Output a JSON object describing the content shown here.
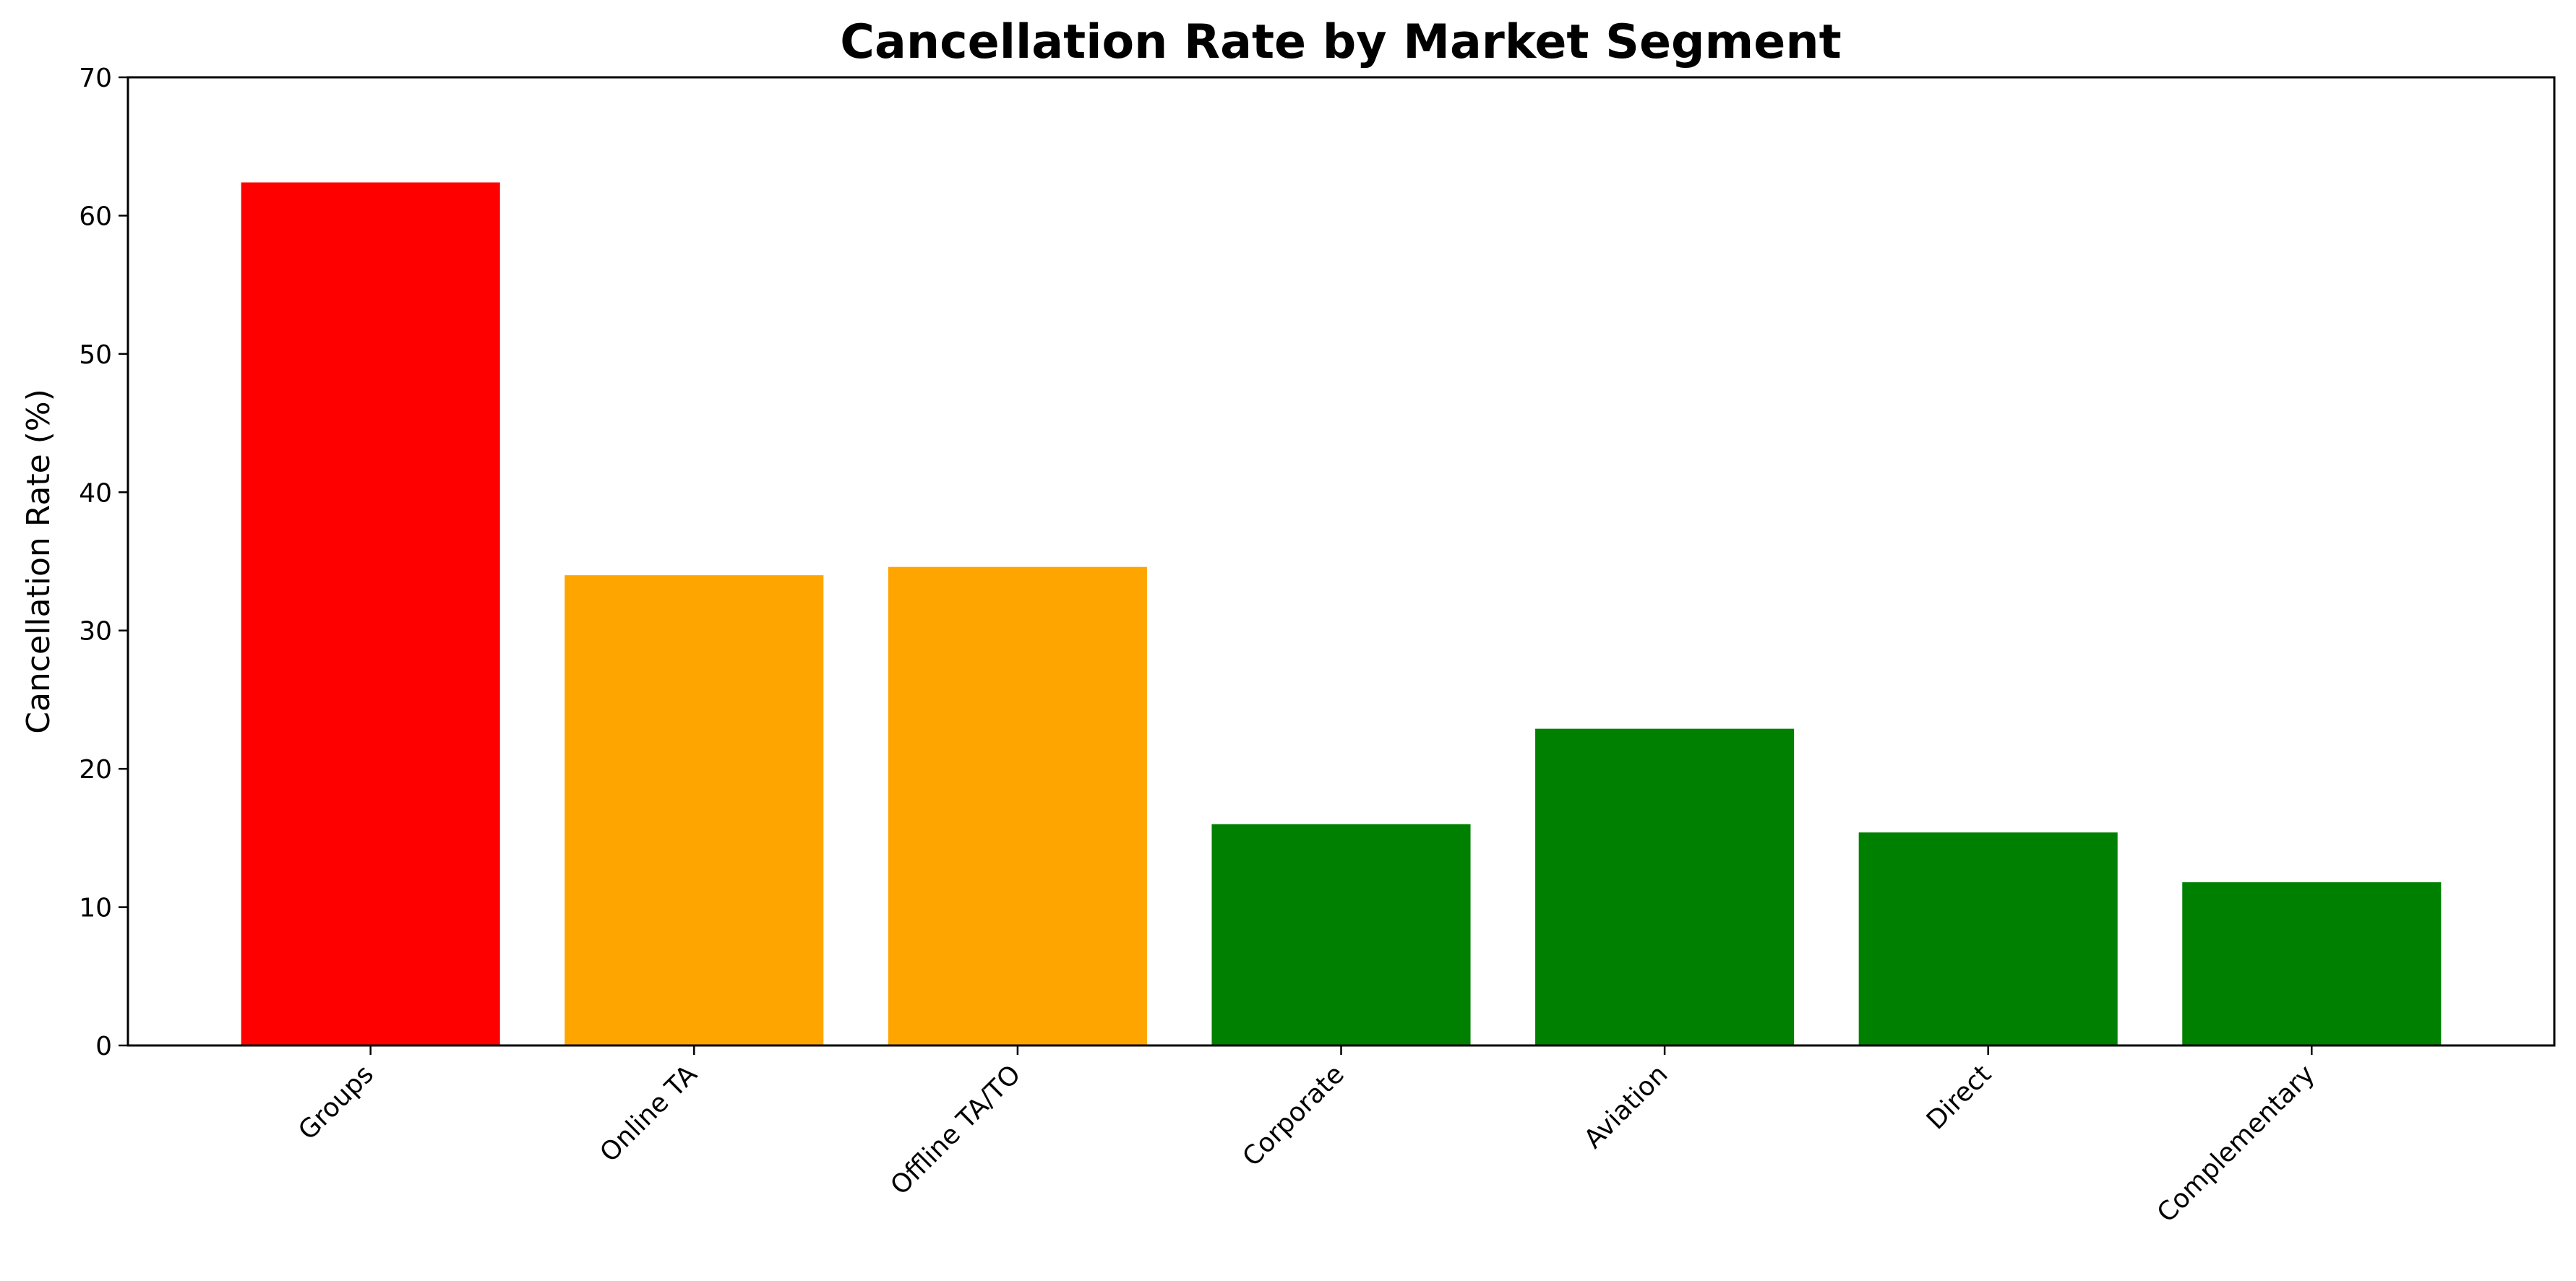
{
  "chart_data": {
    "type": "bar",
    "title": "Cancellation Rate by Market Segment",
    "xlabel": "",
    "ylabel": "Cancellation Rate (%)",
    "ylim": [
      0,
      70
    ],
    "yticks": [
      0,
      10,
      20,
      30,
      40,
      50,
      60,
      70
    ],
    "categories": [
      "Groups",
      "Online TA",
      "Offline TA/TO",
      "Corporate",
      "Aviation",
      "Direct",
      "Complementary"
    ],
    "values": [
      62.4,
      34.0,
      34.6,
      16.0,
      22.9,
      15.4,
      11.8
    ],
    "bar_colors": [
      "#ff0000",
      "#ffa500",
      "#ffa500",
      "#008000",
      "#008000",
      "#008000",
      "#008000"
    ],
    "grid": false,
    "legend": "none"
  }
}
